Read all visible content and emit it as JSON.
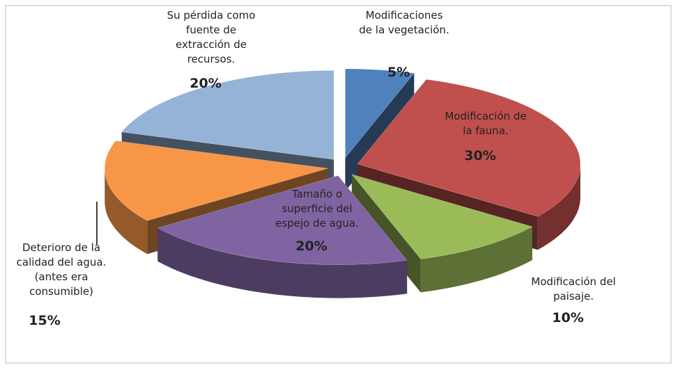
{
  "chart_data": {
    "type": "pie3d",
    "categories": [
      "Modificaciones\nde la vegetación.",
      "Modificación de\nla fauna.",
      "Modificación del\npaisaje.",
      "Tamaño o\nsuperficie del\nespejo de agua.",
      "Deterioro de la\ncalidad del agua.\n(antes era\nconsumible)",
      "Su pérdida como\nfuente de\nextracción de\nrecursos."
    ],
    "values": [
      5,
      30,
      10,
      20,
      15,
      20
    ],
    "value_labels": [
      "5%",
      "30%",
      "10%",
      "20%",
      "15%",
      "20%"
    ],
    "colors": [
      "#4f81bd",
      "#c0504d",
      "#9bbb59",
      "#8064a2",
      "#f79646",
      "#95b3d7"
    ]
  }
}
